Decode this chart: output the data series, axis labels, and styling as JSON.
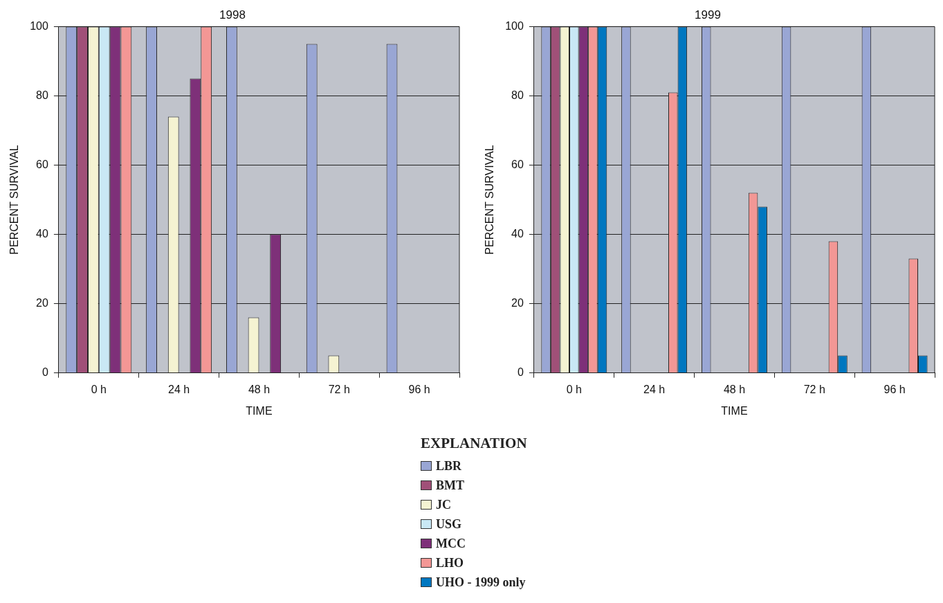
{
  "chart_data": [
    {
      "type": "bar",
      "title": "1998",
      "xlabel": "TIME",
      "ylabel": "PERCENT SURVIVAL",
      "categories": [
        "0 h",
        "24 h",
        "48 h",
        "72 h",
        "96 h"
      ],
      "ylim": [
        0,
        100
      ],
      "yticks": [
        0,
        20,
        40,
        60,
        80,
        100
      ],
      "grid": "y",
      "legend": false,
      "series": [
        {
          "color": "#99a6d4",
          "values": [
            100,
            100,
            100,
            95,
            95
          ]
        },
        {
          "color": "#a05078",
          "values": [
            100,
            null,
            null,
            null,
            null
          ]
        },
        {
          "color": "#f5f3d2",
          "values": [
            100,
            74,
            16,
            5,
            null
          ]
        },
        {
          "color": "#c9e8f5",
          "values": [
            100,
            null,
            null,
            null,
            null
          ]
        },
        {
          "color": "#7e3079",
          "values": [
            100,
            85,
            40,
            null,
            null
          ]
        },
        {
          "color": "#f39795",
          "values": [
            100,
            100,
            null,
            null,
            null
          ]
        }
      ]
    },
    {
      "type": "bar",
      "title": "1999",
      "xlabel": "TIME",
      "ylabel": "PERCENT SURVIVAL",
      "categories": [
        "0 h",
        "24 h",
        "48 h",
        "72 h",
        "96 h"
      ],
      "ylim": [
        0,
        100
      ],
      "yticks": [
        0,
        20,
        40,
        60,
        80,
        100
      ],
      "grid": "y",
      "legend": "bottom",
      "legend_title": "EXPLANATION",
      "series": [
        {
          "name": "LBR",
          "color": "#99a6d4",
          "values": [
            100,
            100,
            100,
            100,
            100
          ]
        },
        {
          "name": "BMT",
          "color": "#a05078",
          "values": [
            100,
            null,
            null,
            null,
            null
          ]
        },
        {
          "name": "JC",
          "color": "#f5f3d2",
          "values": [
            100,
            null,
            null,
            null,
            null
          ]
        },
        {
          "name": "USG",
          "color": "#c9e8f5",
          "values": [
            100,
            null,
            null,
            null,
            null
          ]
        },
        {
          "name": "MCC",
          "color": "#7e3079",
          "values": [
            100,
            null,
            null,
            null,
            null
          ]
        },
        {
          "name": "LHO",
          "color": "#f39795",
          "values": [
            100,
            81,
            52,
            38,
            33
          ]
        },
        {
          "name": "UHO - 1999 only",
          "color": "#0077c0",
          "values": [
            100,
            100,
            48,
            5,
            5
          ]
        }
      ]
    }
  ]
}
